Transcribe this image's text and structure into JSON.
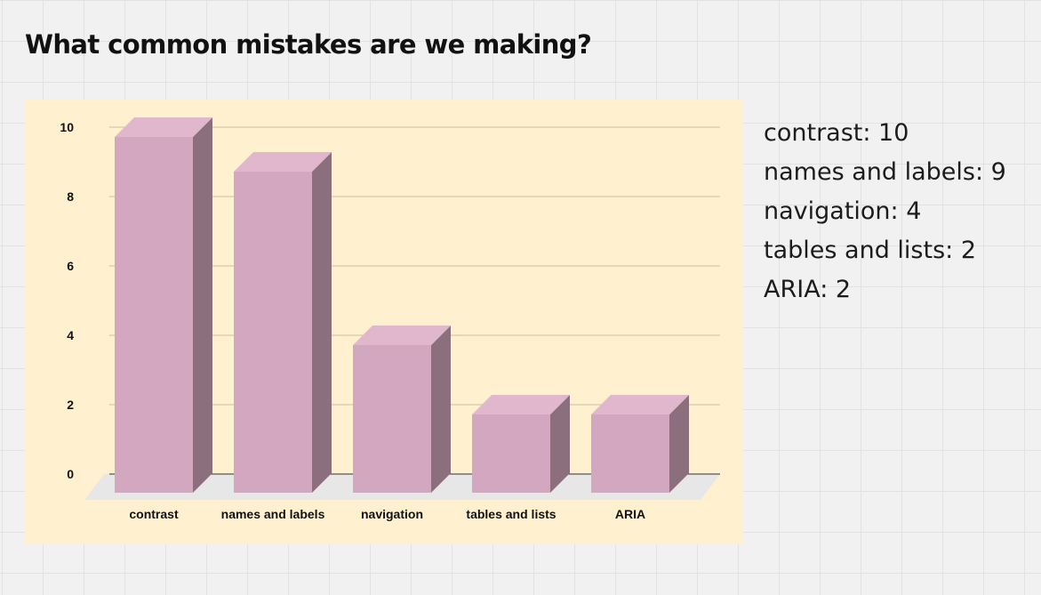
{
  "board": {
    "title": "What common mistakes are we making?"
  },
  "chart_data": {
    "type": "bar",
    "categories": [
      "contrast",
      "names and labels",
      "navigation",
      "tables and lists",
      "ARIA"
    ],
    "values": [
      10,
      9,
      4,
      2,
      2
    ],
    "yticks": [
      "0",
      "2",
      "4",
      "6",
      "8",
      "10"
    ],
    "ylim": [
      0,
      10
    ],
    "xlabel": "",
    "ylabel": "",
    "grid": true,
    "style": "3d",
    "colors": {
      "bar_front": "#d4a7c0",
      "bar_top": "#e1b7cd",
      "bar_side": "#8c6f7d",
      "floor": "#e7e7e7",
      "gridline": "#c9bfa0",
      "card": "#fff1cf"
    }
  },
  "summary": {
    "lines": [
      "contrast: 10",
      "names and labels: 9",
      "navigation: 4",
      "tables and lists: 2",
      "ARIA: 2"
    ]
  }
}
